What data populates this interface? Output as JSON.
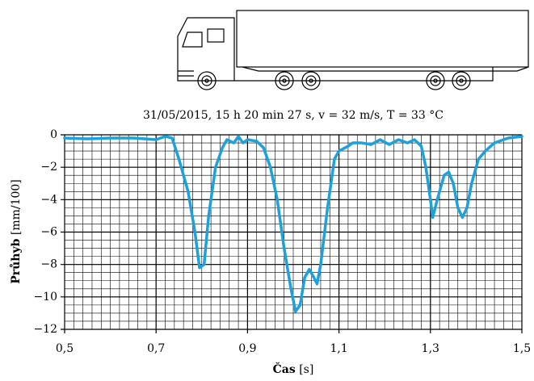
{
  "chart_data": {
    "type": "line",
    "title": "31/05/2015, 15 h 20 min 27 s, v = 32 m/s, T = 33 °C",
    "xlabel": "Čas",
    "xlabel_unit": "[s]",
    "ylabel": "Průhyb",
    "ylabel_unit": "[mm/100]",
    "xlim": [
      0.5,
      1.5
    ],
    "ylim": [
      -12,
      0
    ],
    "xticks": [
      {
        "value": 0.5,
        "label": "0,5"
      },
      {
        "value": 0.7,
        "label": "0,7"
      },
      {
        "value": 0.9,
        "label": "0,9"
      },
      {
        "value": 1.1,
        "label": "1,1"
      },
      {
        "value": 1.3,
        "label": "1,3"
      },
      {
        "value": 1.5,
        "label": "1,5"
      }
    ],
    "yticks": [
      0,
      {
        "value": -2,
        "label": "−2"
      },
      {
        "value": -4,
        "label": "−4"
      },
      {
        "value": -6,
        "label": "−6"
      },
      {
        "value": -8,
        "label": "−8"
      },
      {
        "value": -10,
        "label": "−10"
      },
      {
        "value": -12,
        "label": "−12"
      }
    ],
    "minor_grid_step": [
      0.02,
      0.5
    ],
    "grid": true,
    "series": [
      {
        "color": "#1ba1dc",
        "x": [
          0.5,
          0.55,
          0.6,
          0.65,
          0.7,
          0.72,
          0.735,
          0.75,
          0.77,
          0.785,
          0.795,
          0.805,
          0.815,
          0.83,
          0.845,
          0.855,
          0.87,
          0.88,
          0.89,
          0.9,
          0.92,
          0.935,
          0.95,
          0.965,
          0.98,
          0.995,
          1.005,
          1.015,
          1.025,
          1.035,
          1.045,
          1.052,
          1.06,
          1.075,
          1.09,
          1.1,
          1.12,
          1.13,
          1.15,
          1.17,
          1.19,
          1.21,
          1.23,
          1.25,
          1.265,
          1.28,
          1.29,
          1.3,
          1.305,
          1.315,
          1.33,
          1.34,
          1.35,
          1.36,
          1.37,
          1.38,
          1.39,
          1.405,
          1.42,
          1.44,
          1.47,
          1.5
        ],
        "values": [
          -0.2,
          -0.25,
          -0.2,
          -0.2,
          -0.3,
          -0.1,
          -0.2,
          -1.5,
          -3.5,
          -6,
          -8.2,
          -8,
          -5,
          -2,
          -0.8,
          -0.3,
          -0.5,
          -0.1,
          -0.5,
          -0.3,
          -0.4,
          -0.8,
          -2,
          -4,
          -7,
          -9.5,
          -10.9,
          -10.5,
          -8.8,
          -8.3,
          -8.8,
          -9.2,
          -8,
          -4.5,
          -1.5,
          -1,
          -0.7,
          -0.5,
          -0.5,
          -0.6,
          -0.3,
          -0.6,
          -0.3,
          -0.5,
          -0.3,
          -0.7,
          -2,
          -4,
          -5.1,
          -4,
          -2.5,
          -2.3,
          -3,
          -4.5,
          -5.1,
          -4.5,
          -3,
          -1.5,
          -1,
          -0.5,
          -0.2,
          -0.1
        ]
      }
    ]
  }
}
